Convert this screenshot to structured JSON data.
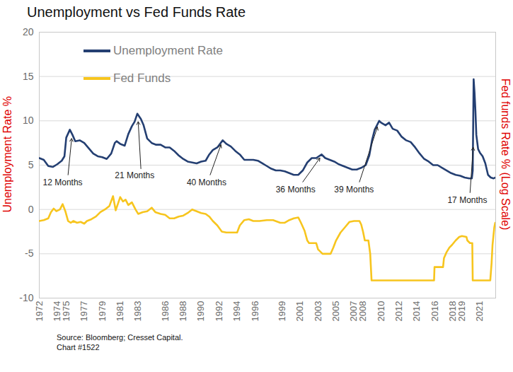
{
  "chart_data": {
    "type": "line",
    "title": "Unemployment vs Fed Funds Rate",
    "y_label": "Unemployment Rate %",
    "y2_label": "Fed funds Rate % (Log Scale)",
    "footnotes": [
      "Source: Bloomberg; Cresset Capital.",
      "Chart #1522"
    ],
    "xlim": [
      1972,
      2022.75
    ],
    "xticks": [
      1972,
      1974,
      1975,
      1977,
      1979,
      1981,
      1983,
      1986,
      1988,
      1990,
      1992,
      1994,
      1996,
      1999,
      2001,
      2003,
      2005,
      2007,
      2008,
      2010,
      2012,
      2014,
      2016,
      2018,
      2019,
      2021
    ],
    "ylim": [
      -10,
      20
    ],
    "yticks": [
      -10,
      -5,
      0,
      5,
      10,
      15,
      20
    ],
    "grid": true,
    "legend": "top-left",
    "series": [
      {
        "name": "Unemployment Rate",
        "color": "#243f72",
        "x": [
          1972.0,
          1972.5,
          1973.0,
          1973.5,
          1974.0,
          1974.5,
          1974.8,
          1975.0,
          1975.4,
          1975.7,
          1976.0,
          1976.5,
          1977.0,
          1977.5,
          1978.0,
          1978.5,
          1979.0,
          1979.5,
          1980.0,
          1980.4,
          1980.6,
          1981.0,
          1981.5,
          1981.9,
          1982.3,
          1982.6,
          1982.9,
          1983.3,
          1983.6,
          1984.0,
          1984.5,
          1985.0,
          1985.5,
          1986.0,
          1986.5,
          1987.0,
          1987.5,
          1988.0,
          1988.5,
          1989.0,
          1989.5,
          1990.0,
          1990.5,
          1990.9,
          1991.3,
          1991.8,
          1992.4,
          1992.8,
          1993.3,
          1993.8,
          1994.3,
          1994.8,
          1995.3,
          1995.8,
          1996.3,
          1996.8,
          1997.3,
          1997.8,
          1998.3,
          1998.8,
          1999.3,
          1999.8,
          2000.3,
          2000.8,
          2001.3,
          2001.8,
          2002.3,
          2002.8,
          2003.4,
          2003.8,
          2004.3,
          2004.8,
          2005.3,
          2005.8,
          2006.3,
          2006.8,
          2007.3,
          2007.8,
          2008.3,
          2008.7,
          2009.0,
          2009.3,
          2009.8,
          2010.0,
          2010.5,
          2010.9,
          2011.3,
          2011.8,
          2012.3,
          2012.8,
          2013.3,
          2013.8,
          2014.3,
          2014.8,
          2015.3,
          2015.8,
          2016.3,
          2016.8,
          2017.3,
          2017.8,
          2018.3,
          2018.8,
          2019.3,
          2019.8,
          2020.1,
          2020.2,
          2020.3,
          2020.4,
          2020.5,
          2020.6,
          2020.8,
          2021.0,
          2021.3,
          2021.6,
          2021.9,
          2022.2,
          2022.5,
          2022.7
        ],
        "values": [
          5.8,
          5.6,
          4.9,
          4.8,
          5.1,
          5.5,
          6.0,
          8.1,
          9.0,
          8.4,
          7.7,
          7.8,
          7.5,
          6.9,
          6.3,
          6.0,
          5.9,
          5.7,
          6.3,
          7.5,
          7.7,
          7.4,
          7.2,
          8.5,
          9.4,
          9.9,
          10.8,
          10.2,
          9.5,
          8.0,
          7.5,
          7.3,
          7.3,
          7.0,
          7.0,
          6.6,
          6.1,
          5.7,
          5.4,
          5.3,
          5.2,
          5.4,
          5.5,
          6.2,
          6.7,
          7.0,
          7.8,
          7.4,
          7.1,
          6.6,
          6.2,
          5.6,
          5.6,
          5.6,
          5.5,
          5.2,
          4.9,
          4.6,
          4.4,
          4.4,
          4.3,
          4.1,
          3.9,
          3.9,
          4.4,
          5.3,
          5.8,
          5.8,
          6.2,
          5.8,
          5.6,
          5.4,
          5.1,
          4.9,
          4.7,
          4.5,
          4.5,
          4.7,
          5.0,
          6.1,
          7.8,
          9.0,
          10.0,
          9.8,
          9.5,
          9.8,
          9.1,
          8.9,
          8.2,
          7.8,
          7.6,
          7.0,
          6.3,
          5.7,
          5.4,
          5.0,
          5.0,
          4.7,
          4.4,
          4.1,
          3.9,
          3.8,
          3.6,
          3.5,
          3.5,
          4.4,
          14.7,
          13.2,
          11.1,
          8.4,
          6.8,
          6.4,
          6.0,
          5.2,
          3.9,
          3.6,
          3.5,
          3.6
        ]
      },
      {
        "name": "Fed Funds",
        "color": "#f7c51e",
        "x": [
          1972.0,
          1972.5,
          1973.0,
          1973.3,
          1973.6,
          1973.9,
          1974.3,
          1974.6,
          1974.9,
          1975.2,
          1975.5,
          1975.8,
          1976.2,
          1976.6,
          1977.0,
          1977.3,
          1977.8,
          1978.3,
          1978.8,
          1979.3,
          1979.8,
          1980.2,
          1980.5,
          1980.8,
          1981.0,
          1981.3,
          1981.6,
          1981.9,
          1982.3,
          1982.7,
          1983.0,
          1983.5,
          1984.0,
          1984.5,
          1984.9,
          1985.5,
          1986.0,
          1986.5,
          1987.0,
          1987.5,
          1988.0,
          1988.5,
          1989.0,
          1989.5,
          1990.0,
          1990.5,
          1990.9,
          1991.3,
          1991.8,
          1992.3,
          1992.8,
          1993.5,
          1994.0,
          1994.3,
          1994.8,
          1995.3,
          1995.8,
          1996.5,
          1997.3,
          1998.0,
          1998.8,
          1999.3,
          1999.8,
          2000.3,
          2000.8,
          2001.1,
          2001.5,
          2001.8,
          2002.0,
          2002.8,
          2003.0,
          2003.5,
          2004.4,
          2004.7,
          2005.0,
          2005.5,
          2006.0,
          2006.5,
          2007.0,
          2007.6,
          2007.8,
          2008.0,
          2008.2,
          2008.6,
          2008.8,
          2008.95,
          2015.9,
          2015.95,
          2016.9,
          2017.0,
          2017.3,
          2017.6,
          2017.9,
          2018.3,
          2018.7,
          2019.0,
          2019.5,
          2019.6,
          2019.9,
          2020.15,
          2020.2,
          2022.15,
          2022.3,
          2022.4,
          2022.5,
          2022.6,
          2022.7
        ],
        "values": [
          -1.3,
          -1.2,
          -1.0,
          -0.3,
          0.1,
          -0.2,
          0.0,
          0.6,
          -0.2,
          -1.3,
          -1.5,
          -1.3,
          -1.5,
          -1.4,
          -1.6,
          -1.3,
          -1.1,
          -0.8,
          -0.3,
          0.0,
          0.4,
          1.5,
          -0.1,
          0.8,
          1.4,
          0.9,
          1.1,
          0.5,
          0.8,
          0.0,
          -0.5,
          -0.3,
          -0.2,
          0.2,
          -0.3,
          -0.5,
          -0.6,
          -1.0,
          -1.0,
          -0.8,
          -0.7,
          -0.4,
          0.0,
          -0.2,
          -0.4,
          -0.5,
          -0.8,
          -1.3,
          -1.8,
          -2.5,
          -2.6,
          -2.6,
          -2.6,
          -1.8,
          -1.2,
          -1.1,
          -1.3,
          -1.3,
          -1.2,
          -1.2,
          -1.5,
          -1.5,
          -1.2,
          -1.0,
          -0.9,
          -1.5,
          -2.4,
          -3.5,
          -3.8,
          -3.8,
          -4.5,
          -5.0,
          -5.0,
          -4.3,
          -3.5,
          -2.6,
          -2.0,
          -1.4,
          -1.3,
          -1.3,
          -1.7,
          -2.5,
          -3.5,
          -3.5,
          -5.0,
          -8.0,
          -8.0,
          -6.5,
          -6.5,
          -5.5,
          -4.8,
          -4.3,
          -4.0,
          -3.5,
          -3.1,
          -3.0,
          -3.1,
          -3.5,
          -3.8,
          -3.8,
          -8.0,
          -8.0,
          -6.0,
          -4.0,
          -3.0,
          -2.0,
          -1.5
        ]
      }
    ],
    "annotations": [
      {
        "text": "12 Months",
        "x": 1974.6,
        "y": 3.0,
        "arrow_from": [
          1975.2,
          3.9
        ],
        "arrow_to": [
          1975.6,
          8.0
        ]
      },
      {
        "text": "21 Months",
        "x": 1982.6,
        "y": 3.8,
        "arrow_from": [
          1983.3,
          4.6
        ],
        "arrow_to": [
          1983.0,
          9.9
        ]
      },
      {
        "text": "40 Months",
        "x": 1990.6,
        "y": 3.0,
        "arrow_from": [
          1991.0,
          3.9
        ],
        "arrow_to": [
          1992.2,
          7.3
        ]
      },
      {
        "text": "36 Months",
        "x": 2000.5,
        "y": 2.2,
        "arrow_from": [
          2001.3,
          3.1
        ],
        "arrow_to": [
          2003.2,
          5.8
        ]
      },
      {
        "text": "39 Months",
        "x": 2007.0,
        "y": 2.2,
        "arrow_from": [
          2007.6,
          3.1
        ],
        "arrow_to": [
          2009.6,
          9.3
        ]
      },
      {
        "text": "17 Months",
        "x": 2019.6,
        "y": 1.0,
        "arrow_from": [
          2019.9,
          1.9
        ],
        "arrow_to": [
          2020.25,
          7.0
        ]
      }
    ]
  }
}
